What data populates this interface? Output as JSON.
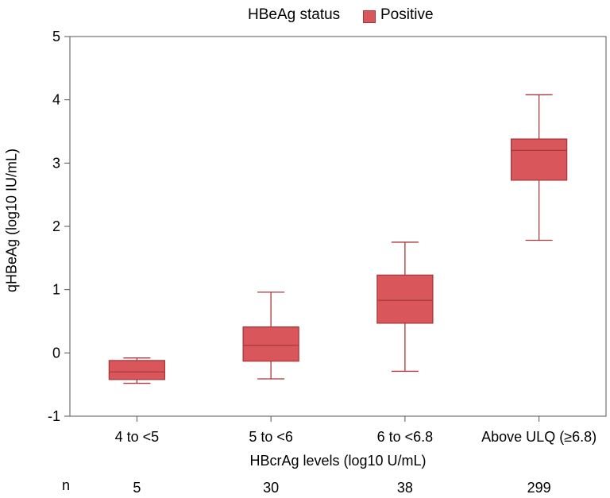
{
  "chart_data": {
    "type": "box",
    "legend": {
      "title": "HBeAg status",
      "entries": [
        "Positive"
      ],
      "placement": "top-center"
    },
    "xlabel": "HBcrAg levels (log10 U/mL)",
    "ylabel": "qHBeAg (log10 IU/mL)",
    "ylim": [
      -1,
      5
    ],
    "yticks": [
      -1,
      0,
      1,
      2,
      3,
      4,
      5
    ],
    "n_label": "n",
    "colors": {
      "box_fill": "#d9575b",
      "box_stroke": "#a8383d",
      "axis": "#555555"
    },
    "categories": [
      {
        "label": "4 to <5",
        "n": "5",
        "whisker_low": -0.48,
        "q1": -0.42,
        "median": -0.3,
        "q3": -0.12,
        "whisker_high": -0.08
      },
      {
        "label": "5 to <6",
        "n": "30",
        "whisker_low": -0.41,
        "q1": -0.13,
        "median": 0.12,
        "q3": 0.41,
        "whisker_high": 0.96
      },
      {
        "label": "6 to <6.8",
        "n": "38",
        "whisker_low": -0.29,
        "q1": 0.47,
        "median": 0.83,
        "q3": 1.23,
        "whisker_high": 1.75
      },
      {
        "label": "Above ULQ (≥6.8)",
        "n": "299",
        "whisker_low": 1.78,
        "q1": 2.73,
        "median": 3.2,
        "q3": 3.38,
        "whisker_high": 4.08
      }
    ]
  }
}
